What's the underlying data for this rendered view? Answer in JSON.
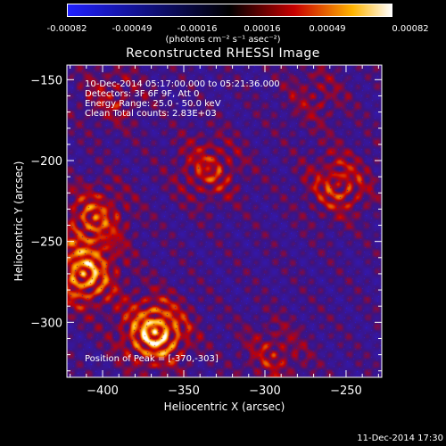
{
  "colorbar": {
    "ticks": [
      "-0.00082",
      "-0.00049",
      "-0.00016",
      "0.00016",
      "0.00049",
      "0.00082"
    ],
    "units": "(photons cm⁻² s⁻¹ asec⁻²)",
    "range": [
      -0.00082,
      0.00082
    ]
  },
  "info": {
    "time": "10-Dec-2014 05:17:00.000 to 05:21:36.000",
    "detectors": "Detectors: 3F 6F 9F, Att 0",
    "energy": "Energy Range: 25.0 - 50.0 keV",
    "clean": "Clean     Total counts: 2.83E+03",
    "peak": "Position of Peak = [-370,-303]"
  },
  "footer": {
    "timestamp": "11-Dec-2014 17:30"
  },
  "chart_data": {
    "type": "heatmap",
    "title": "Reconstructed RHESSI Image",
    "xlabel": "Heliocentric X (arcsec)",
    "ylabel": "Heliocentric Y (arcsec)",
    "xlim": [
      -422,
      -228
    ],
    "ylim": [
      -334,
      -141
    ],
    "xticks": [
      -400,
      -350,
      -300,
      -250
    ],
    "yticks": [
      -150,
      -200,
      -250,
      -300
    ],
    "colormap": [
      "#2020ff",
      "#000000",
      "#c80000",
      "#ffb400",
      "#ffffff"
    ],
    "peak": [
      -370,
      -303
    ],
    "bright_regions": [
      {
        "x": -368,
        "y": -306,
        "level": 1.0
      },
      {
        "x": -412,
        "y": -270,
        "level": 0.85
      },
      {
        "x": -405,
        "y": -235,
        "level": 0.6
      },
      {
        "x": -335,
        "y": -205,
        "level": 0.5
      },
      {
        "x": -255,
        "y": -215,
        "level": 0.55
      },
      {
        "x": -395,
        "y": -160,
        "level": 0.35
      },
      {
        "x": -295,
        "y": -320,
        "level": 0.4
      },
      {
        "x": -270,
        "y": -160,
        "level": 0.3
      }
    ]
  }
}
